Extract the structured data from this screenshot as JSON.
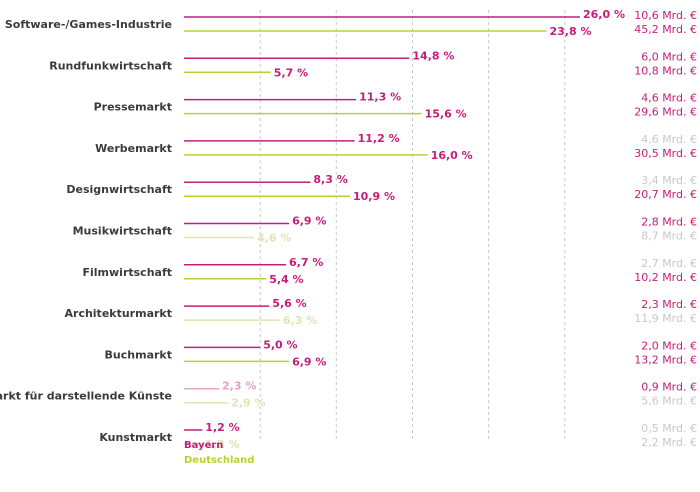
{
  "colors": {
    "bayern": "#c41e79",
    "deutschland": "#b8d232",
    "bayern_light": "#e3a3c8",
    "deutschland_light": "#dce7b2",
    "muted_text": "#c8c8c8",
    "category_text": "#3b3b3b"
  },
  "legend": {
    "bayern": "Bayern",
    "deutschland": "Deutschland"
  },
  "chart_data": {
    "type": "bar",
    "orientation": "horizontal",
    "xlim": [
      0,
      26.0
    ],
    "grid": true,
    "categories": [
      "Software-/Games-Industrie",
      "Rundfunkwirtschaft",
      "Pressemarkt",
      "Werbemarkt",
      "Designwirtschaft",
      "Musikwirtschaft",
      "Filmwirtschaft",
      "Architekturmarkt",
      "Buchmarkt",
      "Markt für darstellende Künste",
      "Kunstmarkt"
    ],
    "series": [
      {
        "name": "Bayern",
        "values": [
          26.0,
          14.8,
          11.3,
          11.2,
          8.3,
          6.9,
          6.7,
          5.6,
          5.0,
          2.3,
          1.2
        ],
        "labels": [
          "26,0 %",
          "14,8 %",
          "11,3 %",
          "11,2 %",
          "8,3 %",
          "6,9 %",
          "6,7 %",
          "5,6 %",
          "5,0 %",
          "2,3 %",
          "1,2 %"
        ],
        "emphasized": [
          true,
          true,
          true,
          true,
          true,
          true,
          true,
          true,
          true,
          false,
          true
        ],
        "amounts": [
          "10,6 Mrd. €",
          "6,0 Mrd. €",
          "4,6 Mrd. €",
          "4,6 Mrd. €",
          "3,4 Mrd. €",
          "2,8 Mrd. €",
          "2,7 Mrd. €",
          "2,3 Mrd. €",
          "2,0 Mrd. €",
          "0,9 Mrd. €",
          "0,5 Mrd. €"
        ],
        "amount_emphasized": [
          true,
          true,
          true,
          false,
          false,
          true,
          false,
          true,
          true,
          true,
          false
        ]
      },
      {
        "name": "Deutschland",
        "values": [
          23.8,
          5.7,
          15.6,
          16.0,
          10.9,
          4.6,
          5.4,
          6.3,
          6.9,
          2.9,
          1.2
        ],
        "labels": [
          "23,8 %",
          "5,7 %",
          "15,6 %",
          "16,0 %",
          "10,9 %",
          "4,6 %",
          "5,4 %",
          "6,3 %",
          "6,9 %",
          "2,9 %",
          "1,2 %"
        ],
        "emphasized": [
          true,
          true,
          true,
          true,
          true,
          false,
          true,
          false,
          true,
          false,
          false
        ],
        "amounts": [
          "45,2 Mrd. €",
          "10,8 Mrd. €",
          "29,6 Mrd. €",
          "30,5 Mrd. €",
          "20,7 Mrd. €",
          "8,7 Mrd. €",
          "10,2 Mrd. €",
          "11,9 Mrd. €",
          "13,2 Mrd. €",
          "5,6 Mrd. €",
          "2,2 Mrd. €"
        ],
        "amount_emphasized": [
          true,
          true,
          true,
          true,
          true,
          false,
          true,
          false,
          true,
          false,
          false
        ]
      }
    ]
  }
}
